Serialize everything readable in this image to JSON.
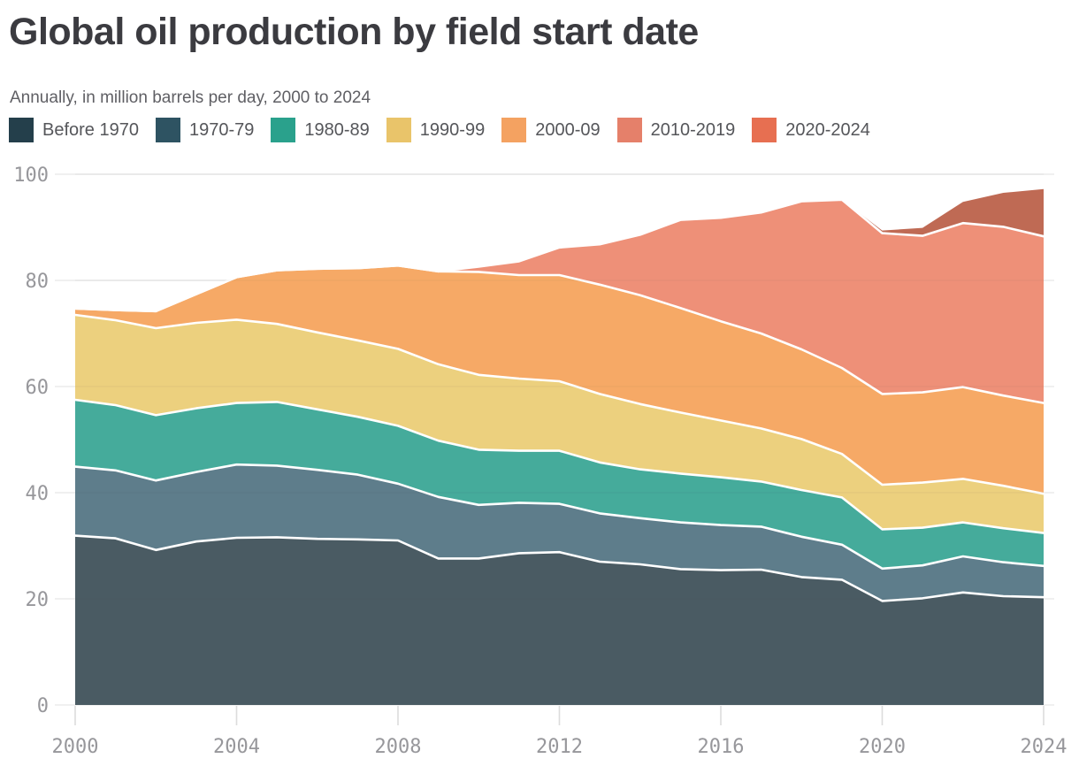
{
  "header": {
    "title": "Global oil production by field start date",
    "subtitle": "Annually, in million barrels per day, 2000 to 2024"
  },
  "legend": {
    "position": "top",
    "items": [
      {
        "label": "Before 1970",
        "color": "#243f4b"
      },
      {
        "label": "1970-79",
        "color": "#2e5362"
      },
      {
        "label": "1980-89",
        "color": "#2aa18c"
      },
      {
        "label": "1990-99",
        "color": "#e9c46a"
      },
      {
        "label": "2000-09",
        "color": "#f4a261"
      },
      {
        "label": "2010-2019",
        "color": "#e5806a"
      },
      {
        "label": "2020-2024",
        "color": "#e76f51"
      }
    ]
  },
  "axes": {
    "y_tick_labels": [
      "0",
      "20",
      "40",
      "60",
      "80",
      "100"
    ],
    "x_tick_labels": [
      "2000",
      "2004",
      "2008",
      "2012",
      "2016",
      "2020",
      "2024"
    ],
    "gridline_color": "#e7e7e7",
    "tick_color": "#dcdcdc",
    "tick_label_color": "#97979b"
  },
  "chart_data": {
    "type": "area",
    "stacked": true,
    "title": "Global oil production by field start date",
    "subtitle": "Annually, in million barrels per day, 2000 to 2024",
    "xlabel": "",
    "ylabel": "million barrels per day",
    "xlim": [
      2000,
      2024
    ],
    "ylim": [
      0,
      100
    ],
    "grid": true,
    "legend_position": "top",
    "x": [
      2000,
      2001,
      2002,
      2003,
      2004,
      2005,
      2006,
      2007,
      2008,
      2009,
      2010,
      2011,
      2012,
      2013,
      2014,
      2015,
      2016,
      2017,
      2018,
      2019,
      2020,
      2021,
      2022,
      2023,
      2024
    ],
    "x_ticks": [
      2000,
      2004,
      2008,
      2012,
      2016,
      2020,
      2024
    ],
    "y_ticks": [
      0,
      20,
      40,
      60,
      80,
      100
    ],
    "series": [
      {
        "name": "Before 1970",
        "legend_color": "#243f4b",
        "area_color": "#4a5b63",
        "values": [
          31.9,
          31.4,
          29.2,
          30.8,
          31.5,
          31.6,
          31.3,
          31.2,
          31.0,
          27.6,
          27.6,
          28.6,
          28.8,
          27.0,
          26.5,
          25.6,
          25.4,
          25.5,
          24.1,
          23.6,
          19.6,
          20.1,
          21.2,
          20.5,
          20.3
        ]
      },
      {
        "name": "1970-79",
        "legend_color": "#2e5362",
        "area_color": "#5e7d8b",
        "values": [
          13.0,
          12.8,
          13.1,
          13.1,
          13.8,
          13.5,
          13.0,
          12.2,
          10.7,
          11.6,
          10.1,
          9.5,
          9.1,
          9.1,
          8.7,
          8.8,
          8.5,
          8.1,
          7.6,
          6.6,
          6.1,
          6.2,
          6.8,
          6.4,
          5.9
        ]
      },
      {
        "name": "1980-89",
        "legend_color": "#2aa18c",
        "area_color": "#45ab9b",
        "values": [
          12.6,
          12.3,
          12.3,
          12.0,
          11.6,
          12.0,
          11.4,
          10.9,
          10.9,
          10.6,
          10.4,
          9.8,
          10.0,
          9.6,
          9.2,
          9.2,
          9.0,
          8.5,
          8.8,
          8.9,
          7.4,
          7.1,
          6.4,
          6.4,
          6.2
        ]
      },
      {
        "name": "1990-99",
        "legend_color": "#e9c46a",
        "area_color": "#ecd07e",
        "values": [
          16.0,
          16.0,
          16.4,
          16.1,
          15.7,
          14.7,
          14.5,
          14.4,
          14.5,
          14.4,
          14.1,
          13.6,
          13.1,
          12.9,
          12.3,
          11.5,
          10.7,
          10.0,
          9.6,
          8.2,
          8.4,
          8.5,
          8.2,
          8.0,
          7.4
        ]
      },
      {
        "name": "2000-09",
        "legend_color": "#f4a261",
        "area_color": "#f6a966",
        "values": [
          1.2,
          1.9,
          3.2,
          5.4,
          8.0,
          10.1,
          12.0,
          13.6,
          15.7,
          17.5,
          19.4,
          19.5,
          20.0,
          20.6,
          20.5,
          19.7,
          18.7,
          17.9,
          16.9,
          16.2,
          17.1,
          17.0,
          17.3,
          17.0,
          17.1
        ]
      },
      {
        "name": "2010-2019",
        "legend_color": "#e5806a",
        "area_color": "#ee9078",
        "values": [
          0,
          0,
          0,
          0,
          0,
          0,
          0,
          0,
          0,
          0,
          1.0,
          2.6,
          5.2,
          7.6,
          11.4,
          16.6,
          19.5,
          22.8,
          27.9,
          31.7,
          30.3,
          29.5,
          30.9,
          31.8,
          31.4
        ]
      },
      {
        "name": "2020-2024",
        "legend_color": "#e76f51",
        "area_color": "#bf6a54",
        "values": [
          0,
          0,
          0,
          0,
          0,
          0,
          0,
          0,
          0,
          0,
          0,
          0,
          0,
          0,
          0,
          0,
          0,
          0,
          0,
          0,
          0.5,
          1.5,
          4.0,
          6.4,
          8.9
        ]
      }
    ]
  },
  "plot_geometry_note": "y axis 0-100, x axis 2000-2024"
}
